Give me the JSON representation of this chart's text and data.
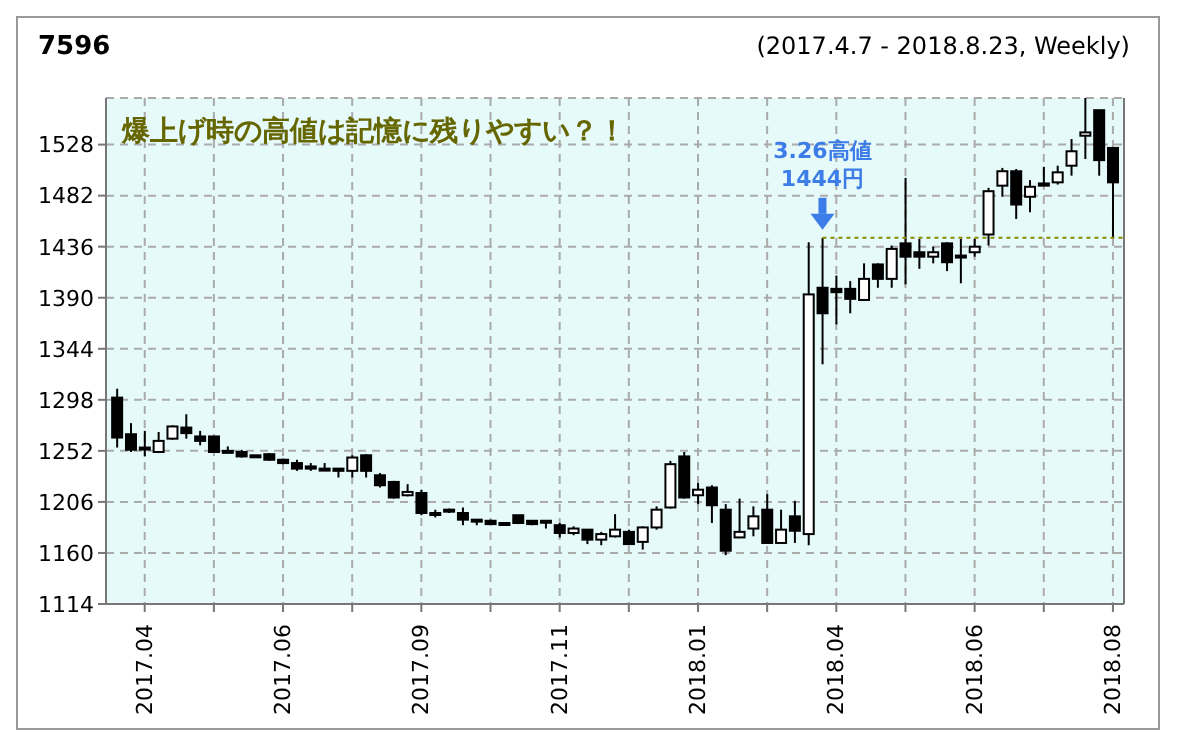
{
  "chart_data": {
    "type": "candlestick",
    "title": "7596",
    "subtitle": "(2017.4.7 - 2018.8.23, Weekly)",
    "annotations": [
      "爆上げ時の高値は記憶に残りやすい？！",
      {
        "text": "3.26高値\n1444円",
        "y": 1444
      }
    ],
    "categories": [
      null,
      null,
      "2017.04",
      null,
      null,
      null,
      null,
      null,
      null,
      null,
      null,
      null,
      "2017.06",
      null,
      null,
      null,
      null,
      null,
      null,
      null,
      null,
      null,
      "2017.09",
      null,
      null,
      null,
      null,
      null,
      null,
      null,
      null,
      null,
      "2017.11",
      null,
      null,
      null,
      null,
      null,
      null,
      null,
      null,
      null,
      "2018.01",
      null,
      null,
      null,
      null,
      null,
      null,
      null,
      null,
      null,
      "2018.04",
      null,
      null,
      null,
      null,
      null,
      null,
      null,
      null,
      null,
      "2018.06",
      null,
      null,
      null,
      null,
      null,
      null,
      null,
      null,
      null,
      "2018.08"
    ],
    "ohlc": [
      [
        1300,
        1308,
        1255,
        1264
      ],
      [
        1267,
        1277,
        1251,
        1253
      ],
      [
        1255,
        1270,
        1247,
        1254
      ],
      [
        1251,
        1269,
        1251,
        1261
      ],
      [
        1263,
        1275,
        1262,
        1274
      ],
      [
        1273,
        1285,
        1263,
        1268
      ],
      [
        1265,
        1270,
        1257,
        1261
      ],
      [
        1265,
        1265,
        1251,
        1251
      ],
      [
        1252,
        1256,
        1250,
        1251
      ],
      [
        1251,
        1253,
        1246,
        1247
      ],
      [
        1248,
        1248,
        1246,
        1247
      ],
      [
        1249,
        1250,
        1243,
        1244
      ],
      [
        1244,
        1245,
        1240,
        1241
      ],
      [
        1241,
        1244,
        1234,
        1236
      ],
      [
        1238,
        1241,
        1234,
        1236
      ],
      [
        1236,
        1241,
        1234,
        1235
      ],
      [
        1236,
        1236,
        1228,
        1234
      ],
      [
        1234,
        1248,
        1228,
        1246
      ],
      [
        1248,
        1249,
        1228,
        1234
      ],
      [
        1230,
        1232,
        1219,
        1221
      ],
      [
        1224,
        1225,
        1209,
        1210
      ],
      [
        1212,
        1222,
        1211,
        1215
      ],
      [
        1214,
        1217,
        1194,
        1196
      ],
      [
        1195,
        1199,
        1192,
        1196
      ],
      [
        1198,
        1200,
        1196,
        1199
      ],
      [
        1196,
        1201,
        1185,
        1190
      ],
      [
        1190,
        1190,
        1185,
        1189
      ],
      [
        1189,
        1190,
        1186,
        1186
      ],
      [
        1187,
        1187,
        1185,
        1186
      ],
      [
        1194,
        1194,
        1186,
        1187
      ],
      [
        1189,
        1189,
        1185,
        1186
      ],
      [
        1189,
        1189,
        1182,
        1188
      ],
      [
        1185,
        1187,
        1174,
        1178
      ],
      [
        1178,
        1184,
        1176,
        1182
      ],
      [
        1181,
        1181,
        1168,
        1172
      ],
      [
        1172,
        1179,
        1167,
        1177
      ],
      [
        1175,
        1195,
        1174,
        1181
      ],
      [
        1179,
        1181,
        1167,
        1168
      ],
      [
        1170,
        1184,
        1163,
        1183
      ],
      [
        1183,
        1202,
        1181,
        1199
      ],
      [
        1201,
        1243,
        1200,
        1240
      ],
      [
        1247,
        1251,
        1209,
        1210
      ],
      [
        1212,
        1223,
        1204,
        1217
      ],
      [
        1219,
        1221,
        1187,
        1203
      ],
      [
        1199,
        1204,
        1158,
        1162
      ],
      [
        1174,
        1209,
        1174,
        1179
      ],
      [
        1182,
        1202,
        1175,
        1193
      ],
      [
        1199,
        1213,
        1169,
        1169
      ],
      [
        1169,
        1199,
        1169,
        1181
      ],
      [
        1193,
        1207,
        1169,
        1180
      ],
      [
        1177,
        1440,
        1167,
        1393
      ],
      [
        1399,
        1444,
        1330,
        1376
      ],
      [
        1398,
        1410,
        1366,
        1395
      ],
      [
        1398,
        1405,
        1376,
        1389
      ],
      [
        1388,
        1421,
        1387,
        1407
      ],
      [
        1420,
        1421,
        1399,
        1407
      ],
      [
        1407,
        1437,
        1399,
        1434
      ],
      [
        1439,
        1498,
        1402,
        1427
      ],
      [
        1431,
        1443,
        1416,
        1427
      ],
      [
        1427,
        1436,
        1421,
        1431
      ],
      [
        1439,
        1440,
        1414,
        1422
      ],
      [
        1428,
        1443,
        1403,
        1427
      ],
      [
        1431,
        1443,
        1427,
        1436
      ],
      [
        1447,
        1489,
        1437,
        1486
      ],
      [
        1491,
        1507,
        1481,
        1504
      ],
      [
        1504,
        1506,
        1461,
        1474
      ],
      [
        1481,
        1496,
        1467,
        1490
      ],
      [
        1493,
        1508,
        1491,
        1491
      ],
      [
        1494,
        1509,
        1492,
        1503
      ],
      [
        1509,
        1533,
        1500,
        1522
      ],
      [
        1536,
        1570,
        1515,
        1539
      ],
      [
        1559,
        1559,
        1500,
        1514
      ],
      [
        1525,
        1525,
        1444,
        1494
      ]
    ],
    "ylim": [
      1114,
      1570
    ],
    "yticks": [
      1114,
      1160,
      1206,
      1252,
      1298,
      1344,
      1390,
      1436,
      1482,
      1528
    ],
    "grid": true,
    "ref_lines": [
      {
        "axis": "y",
        "value": 1444,
        "color": "#888800",
        "line_style": "dotted"
      }
    ]
  }
}
